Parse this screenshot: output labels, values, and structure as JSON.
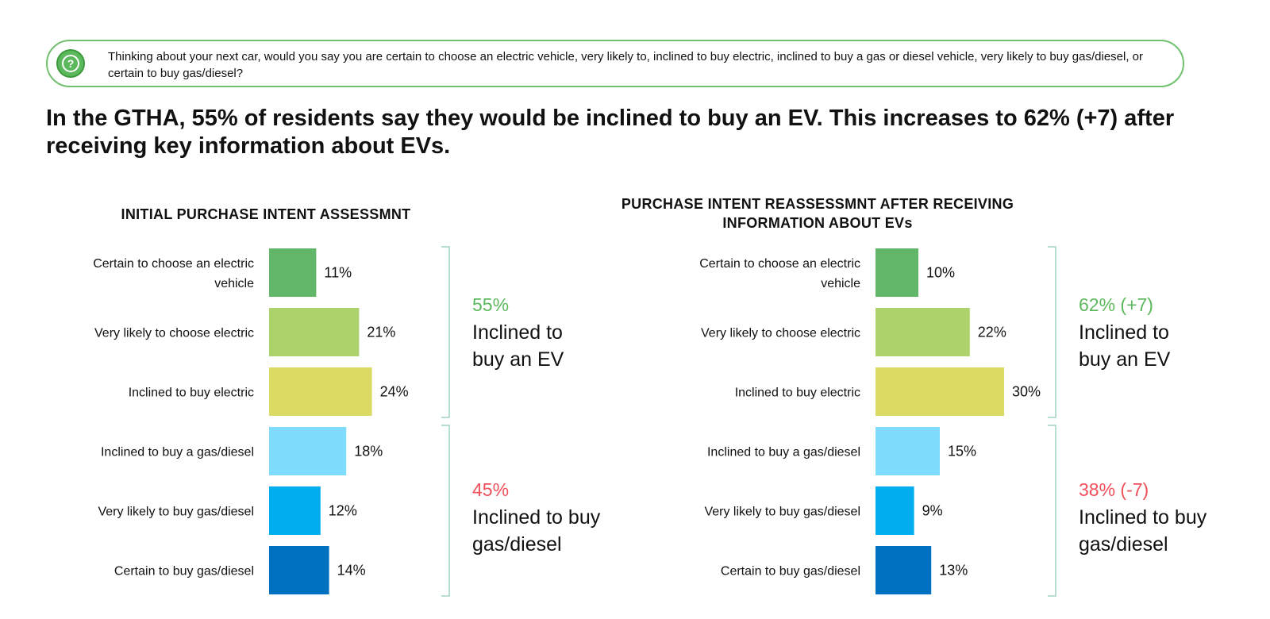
{
  "question": "Thinking about your next car, would you say you are certain to choose an electric vehicle, very likely to, inclined to buy electric, inclined to buy a gas or diesel vehicle, very likely to buy gas/diesel, or certain to buy gas/diesel?",
  "question_icon": "question-bubble-icon",
  "headline": "In the GTHA, 55% of residents say they would be inclined to buy an EV. This increases to 62% (+7) after receiving key information about EVs.",
  "colors": {
    "ev_positive": "#5cb85c",
    "gas_negative": "#f0505a",
    "bracket": "#9fd3c0"
  },
  "chart_data": [
    {
      "type": "bar",
      "orientation": "horizontal",
      "title": "INITIAL PURCHASE INTENT ASSESSMNT",
      "categories": [
        "Certain to choose an electric vehicle",
        "Very likely to choose electric",
        "Inclined to buy electric",
        "Inclined to buy a gas/diesel",
        "Very likely to buy gas/diesel",
        "Certain to buy gas/diesel"
      ],
      "values": [
        11,
        21,
        24,
        18,
        12,
        14
      ],
      "value_labels": [
        "11%",
        "21%",
        "24%",
        "18%",
        "12%",
        "14%"
      ],
      "colors": [
        "#62b66a",
        "#acd36b",
        "#dbdb63",
        "#7fdcfc",
        "#00aeef",
        "#0070c0"
      ],
      "unit": "%",
      "groups": [
        {
          "percent": "55%",
          "label": "Inclined to buy an EV",
          "lines": [
            "Inclined to",
            "buy an EV"
          ],
          "color": "#5cb85c"
        },
        {
          "percent": "45%",
          "label": "Inclined to buy gas/diesel",
          "lines": [
            "Inclined to buy",
            "gas/diesel"
          ],
          "color": "#f0505a"
        }
      ]
    },
    {
      "type": "bar",
      "orientation": "horizontal",
      "title": "PURCHASE INTENT REASSESSMNT AFTER RECEIVING INFORMATION ABOUT EVs",
      "categories": [
        "Certain to choose an electric vehicle",
        "Very likely to choose electric",
        "Inclined to buy electric",
        "Inclined to buy a gas/diesel",
        "Very likely to buy gas/diesel",
        "Certain to buy gas/diesel"
      ],
      "values": [
        10,
        22,
        30,
        15,
        9,
        13
      ],
      "value_labels": [
        "10%",
        "22%",
        "30%",
        "15%",
        "9%",
        "13%"
      ],
      "colors": [
        "#62b66a",
        "#acd36b",
        "#dbdb63",
        "#7fdcfc",
        "#00aeef",
        "#0070c0"
      ],
      "unit": "%",
      "groups": [
        {
          "percent": "62% (+7)",
          "label": "Inclined to buy an EV",
          "lines": [
            "Inclined to",
            "buy an EV"
          ],
          "color": "#5cb85c"
        },
        {
          "percent": "38% (-7)",
          "label": "Inclined to buy gas/diesel",
          "lines": [
            "Inclined to buy",
            "gas/diesel"
          ],
          "color": "#f0505a"
        }
      ]
    }
  ]
}
